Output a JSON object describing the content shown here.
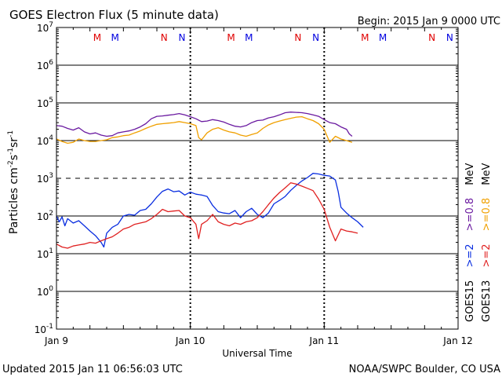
{
  "chart_data": {
    "type": "line",
    "title": "GOES Electron Flux (5 minute data)",
    "begin_label": "Begin: 2015 Jan 9 0000 UTC",
    "xlabel": "Universal Time",
    "ylabel_parts": [
      "Particles cm",
      "-2",
      "s",
      "-1",
      "sr",
      "-1"
    ],
    "updated_label": "Updated 2015 Jan 11 06:56:03 UTC",
    "source_label": "NOAA/SWPC Boulder, CO USA",
    "x_unit": "hours since 2015 Jan 9 0000 UTC",
    "xlim": [
      0,
      72
    ],
    "x_ticks": [
      {
        "hour": 0,
        "label": "Jan 9"
      },
      {
        "hour": 24,
        "label": "Jan 10"
      },
      {
        "hour": 48,
        "label": "Jan 11"
      },
      {
        "hour": 72,
        "label": "Jan 12"
      }
    ],
    "y_scale": "log",
    "ylim_exp": [
      -1,
      7
    ],
    "y_tick_exps": [
      7,
      6,
      5,
      4,
      3,
      2,
      1,
      0,
      -1
    ],
    "solid_grid_exps": [
      6,
      5,
      4,
      2,
      1,
      0
    ],
    "dashed_grid_exps": [
      3
    ],
    "day_divider_hours": [
      24,
      48
    ],
    "markers": [
      {
        "hour": 7.3,
        "label": "M",
        "color": "#e00000"
      },
      {
        "hour": 10.5,
        "label": "M",
        "color": "#0000e0"
      },
      {
        "hour": 19.3,
        "label": "N",
        "color": "#e00000"
      },
      {
        "hour": 22.5,
        "label": "N",
        "color": "#0000e0"
      },
      {
        "hour": 31.3,
        "label": "M",
        "color": "#e00000"
      },
      {
        "hour": 34.5,
        "label": "M",
        "color": "#0000e0"
      },
      {
        "hour": 43.3,
        "label": "N",
        "color": "#e00000"
      },
      {
        "hour": 46.5,
        "label": "N",
        "color": "#0000e0"
      },
      {
        "hour": 55.3,
        "label": "M",
        "color": "#e00000"
      },
      {
        "hour": 58.5,
        "label": "M",
        "color": "#0000e0"
      },
      {
        "hour": 67.3,
        "label": "N",
        "color": "#e00000"
      },
      {
        "hour": 70.5,
        "label": "N",
        "color": "#0000e0"
      }
    ],
    "series": [
      {
        "name": ">=0.8 MeV (GOES15)",
        "color": "#6a1aa0",
        "points": [
          [
            0,
            25000
          ],
          [
            1,
            24000
          ],
          [
            2,
            21000
          ],
          [
            3,
            19000
          ],
          [
            4,
            22000
          ],
          [
            5,
            17000
          ],
          [
            6,
            15000
          ],
          [
            7,
            16000
          ],
          [
            8,
            14000
          ],
          [
            9,
            13000
          ],
          [
            10,
            13500
          ],
          [
            11,
            16000
          ],
          [
            12,
            17000
          ],
          [
            13,
            18000
          ],
          [
            14,
            20000
          ],
          [
            15,
            23000
          ],
          [
            16,
            28000
          ],
          [
            17,
            38000
          ],
          [
            18,
            44000
          ],
          [
            19,
            45000
          ],
          [
            20,
            47000
          ],
          [
            21,
            49000
          ],
          [
            22,
            52000
          ],
          [
            23,
            48000
          ],
          [
            24,
            43000
          ],
          [
            25,
            38000
          ],
          [
            26,
            32000
          ],
          [
            27,
            33000
          ],
          [
            28,
            36000
          ],
          [
            29,
            34000
          ],
          [
            30,
            31000
          ],
          [
            31,
            27000
          ],
          [
            32,
            24000
          ],
          [
            33,
            23000
          ],
          [
            34,
            25000
          ],
          [
            35,
            30000
          ],
          [
            36,
            34000
          ],
          [
            37,
            35000
          ],
          [
            38,
            40000
          ],
          [
            39,
            43000
          ],
          [
            40,
            48000
          ],
          [
            41,
            55000
          ],
          [
            42,
            57000
          ],
          [
            43,
            56000
          ],
          [
            44,
            55000
          ],
          [
            45,
            52000
          ],
          [
            46,
            48000
          ],
          [
            47,
            44000
          ],
          [
            48,
            36000
          ],
          [
            49,
            30000
          ],
          [
            50,
            28000
          ],
          [
            51,
            23000
          ],
          [
            52,
            20000
          ],
          [
            52.5,
            15000
          ],
          [
            53,
            13000
          ]
        ]
      },
      {
        "name": ">=2 MeV (GOES15)",
        "color": "#0a2ee0",
        "points": [
          [
            0,
            100
          ],
          [
            0.5,
            70
          ],
          [
            1,
            95
          ],
          [
            1.5,
            55
          ],
          [
            2,
            85
          ],
          [
            3,
            65
          ],
          [
            4,
            75
          ],
          [
            5,
            55
          ],
          [
            6,
            40
          ],
          [
            7,
            30
          ],
          [
            8,
            20
          ],
          [
            8.5,
            15
          ],
          [
            9,
            35
          ],
          [
            10,
            50
          ],
          [
            11,
            60
          ],
          [
            12,
            100
          ],
          [
            13,
            110
          ],
          [
            14,
            105
          ],
          [
            15,
            140
          ],
          [
            16,
            150
          ],
          [
            17,
            210
          ],
          [
            18,
            320
          ],
          [
            19,
            450
          ],
          [
            20,
            520
          ],
          [
            21,
            440
          ],
          [
            22,
            460
          ],
          [
            23,
            360
          ],
          [
            24,
            430
          ],
          [
            25,
            380
          ],
          [
            26,
            360
          ],
          [
            27,
            330
          ],
          [
            28,
            190
          ],
          [
            29,
            130
          ],
          [
            30,
            120
          ],
          [
            31,
            115
          ],
          [
            32,
            140
          ],
          [
            33,
            90
          ],
          [
            34,
            130
          ],
          [
            35,
            160
          ],
          [
            36,
            110
          ],
          [
            37,
            90
          ],
          [
            38,
            120
          ],
          [
            39,
            210
          ],
          [
            40,
            260
          ],
          [
            41,
            330
          ],
          [
            42,
            480
          ],
          [
            43,
            650
          ],
          [
            44,
            850
          ],
          [
            45,
            1050
          ],
          [
            46,
            1350
          ],
          [
            47,
            1300
          ],
          [
            48,
            1200
          ],
          [
            49,
            1150
          ],
          [
            50,
            900
          ],
          [
            50.5,
            450
          ],
          [
            51,
            170
          ],
          [
            52,
            120
          ],
          [
            53,
            90
          ],
          [
            54,
            70
          ],
          [
            55,
            50
          ]
        ]
      },
      {
        "name": ">=0.8 MeV (GOES13)",
        "color": "#f0a000",
        "points": [
          [
            0,
            11000
          ],
          [
            1,
            9500
          ],
          [
            2,
            8500
          ],
          [
            3,
            9000
          ],
          [
            4,
            11000
          ],
          [
            5,
            10000
          ],
          [
            6,
            9500
          ],
          [
            7,
            9500
          ],
          [
            8,
            10000
          ],
          [
            9,
            10500
          ],
          [
            10,
            12000
          ],
          [
            11,
            12500
          ],
          [
            12,
            13500
          ],
          [
            13,
            14000
          ],
          [
            14,
            16000
          ],
          [
            15,
            18000
          ],
          [
            16,
            21000
          ],
          [
            17,
            24000
          ],
          [
            18,
            27000
          ],
          [
            19,
            28000
          ],
          [
            20,
            29000
          ],
          [
            21,
            30000
          ],
          [
            22,
            32000
          ],
          [
            23,
            30000
          ],
          [
            24,
            28000
          ],
          [
            25,
            25000
          ],
          [
            25.5,
            12000
          ],
          [
            26,
            10500
          ],
          [
            27,
            16000
          ],
          [
            28,
            20000
          ],
          [
            29,
            22000
          ],
          [
            30,
            19000
          ],
          [
            31,
            17000
          ],
          [
            32,
            16000
          ],
          [
            33,
            14000
          ],
          [
            34,
            13000
          ],
          [
            35,
            14500
          ],
          [
            36,
            16000
          ],
          [
            37,
            21000
          ],
          [
            38,
            26000
          ],
          [
            39,
            30000
          ],
          [
            40,
            33000
          ],
          [
            41,
            36000
          ],
          [
            42,
            39000
          ],
          [
            43,
            42000
          ],
          [
            44,
            43000
          ],
          [
            45,
            38000
          ],
          [
            46,
            34000
          ],
          [
            47,
            28000
          ],
          [
            48,
            20000
          ],
          [
            49,
            9000
          ],
          [
            50,
            13000
          ],
          [
            51,
            11000
          ],
          [
            52,
            10000
          ],
          [
            53,
            9000
          ]
        ]
      },
      {
        "name": ">=2 MeV (GOES13)",
        "color": "#e02020",
        "points": [
          [
            0,
            18
          ],
          [
            1,
            15
          ],
          [
            2,
            14
          ],
          [
            3,
            16
          ],
          [
            4,
            17
          ],
          [
            5,
            18
          ],
          [
            6,
            20
          ],
          [
            7,
            19
          ],
          [
            8,
            22
          ],
          [
            9,
            25
          ],
          [
            10,
            28
          ],
          [
            11,
            35
          ],
          [
            12,
            45
          ],
          [
            13,
            50
          ],
          [
            14,
            60
          ],
          [
            15,
            65
          ],
          [
            16,
            70
          ],
          [
            17,
            85
          ],
          [
            18,
            110
          ],
          [
            19,
            150
          ],
          [
            20,
            130
          ],
          [
            21,
            135
          ],
          [
            22,
            140
          ],
          [
            23,
            100
          ],
          [
            24,
            90
          ],
          [
            25,
            60
          ],
          [
            25.5,
            25
          ],
          [
            26,
            60
          ],
          [
            27,
            75
          ],
          [
            28,
            110
          ],
          [
            29,
            70
          ],
          [
            30,
            60
          ],
          [
            31,
            55
          ],
          [
            32,
            65
          ],
          [
            33,
            60
          ],
          [
            34,
            70
          ],
          [
            35,
            75
          ],
          [
            36,
            90
          ],
          [
            37,
            130
          ],
          [
            38,
            200
          ],
          [
            39,
            300
          ],
          [
            40,
            420
          ],
          [
            41,
            560
          ],
          [
            42,
            760
          ],
          [
            43,
            700
          ],
          [
            44,
            620
          ],
          [
            45,
            540
          ],
          [
            46,
            470
          ],
          [
            47,
            280
          ],
          [
            48,
            150
          ],
          [
            49,
            50
          ],
          [
            50,
            22
          ],
          [
            51,
            45
          ],
          [
            52,
            40
          ],
          [
            53,
            38
          ],
          [
            54,
            35
          ]
        ]
      }
    ],
    "right_legend": [
      {
        "text": "GOES15",
        "color": "#000000"
      },
      {
        "text": ">=2",
        "color": "#0a2ee0"
      },
      {
        "text": ">=0.8",
        "color": "#6a1aa0"
      },
      {
        "text": "MeV",
        "color": "#000000"
      },
      {
        "text": "GOES13",
        "color": "#000000"
      },
      {
        "text": ">=2",
        "color": "#e02020"
      },
      {
        "text": ">=0.8",
        "color": "#f0a000"
      },
      {
        "text": "MeV",
        "color": "#000000"
      }
    ]
  }
}
